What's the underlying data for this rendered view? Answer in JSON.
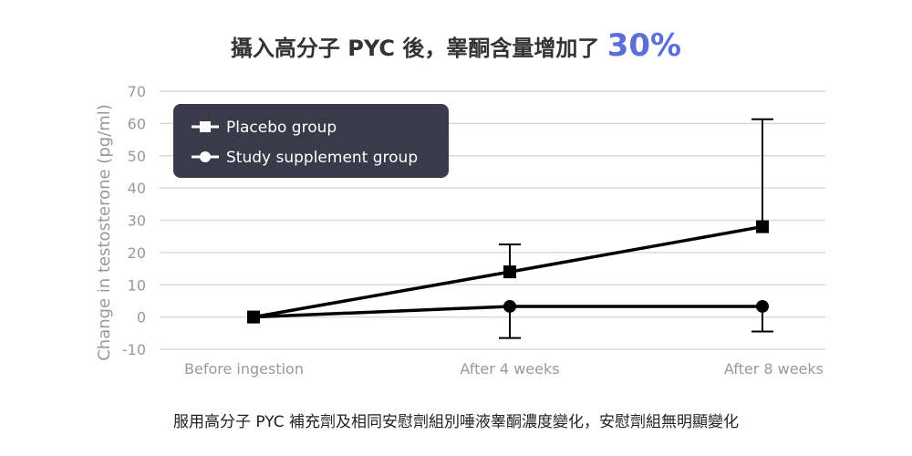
{
  "title": {
    "text": "攝入高分子 PYC 後，睾酮含量增加了",
    "highlight": "30%"
  },
  "caption": "服用高分子 PYC 補充劑及相同安慰劑組別唾液睾酮濃度變化，安慰劑組無明顯變化",
  "chart_data": {
    "type": "line",
    "title": "攝入高分子 PYC 後，睾酮含量增加了 30%",
    "xlabel": "",
    "ylabel": "Change in testosterone (pg/ml)",
    "categories": [
      "Before ingestion",
      "After 4 weeks",
      "After 8 weeks"
    ],
    "ylim": [
      -10,
      70
    ],
    "yticks": [
      -10,
      0,
      10,
      20,
      30,
      40,
      50,
      60,
      70
    ],
    "grid": true,
    "legend_position": "top-left",
    "series": [
      {
        "name": "Placebo group",
        "marker": "square",
        "values": [
          0,
          14,
          28
        ],
        "error_upper": [
          null,
          22.5,
          61.3
        ],
        "error_lower": [
          null,
          null,
          null
        ]
      },
      {
        "name": "Study supplement group",
        "marker": "circle",
        "values": [
          0,
          3.3,
          3.3
        ],
        "error_upper": [
          null,
          null,
          null
        ],
        "error_lower": [
          null,
          -6.5,
          -4.5
        ]
      }
    ]
  },
  "colors": {
    "line": "#000000",
    "grid": "#d9d9d9",
    "legend_bg": "#3a3a4a",
    "highlight": "#5b6fd8"
  }
}
